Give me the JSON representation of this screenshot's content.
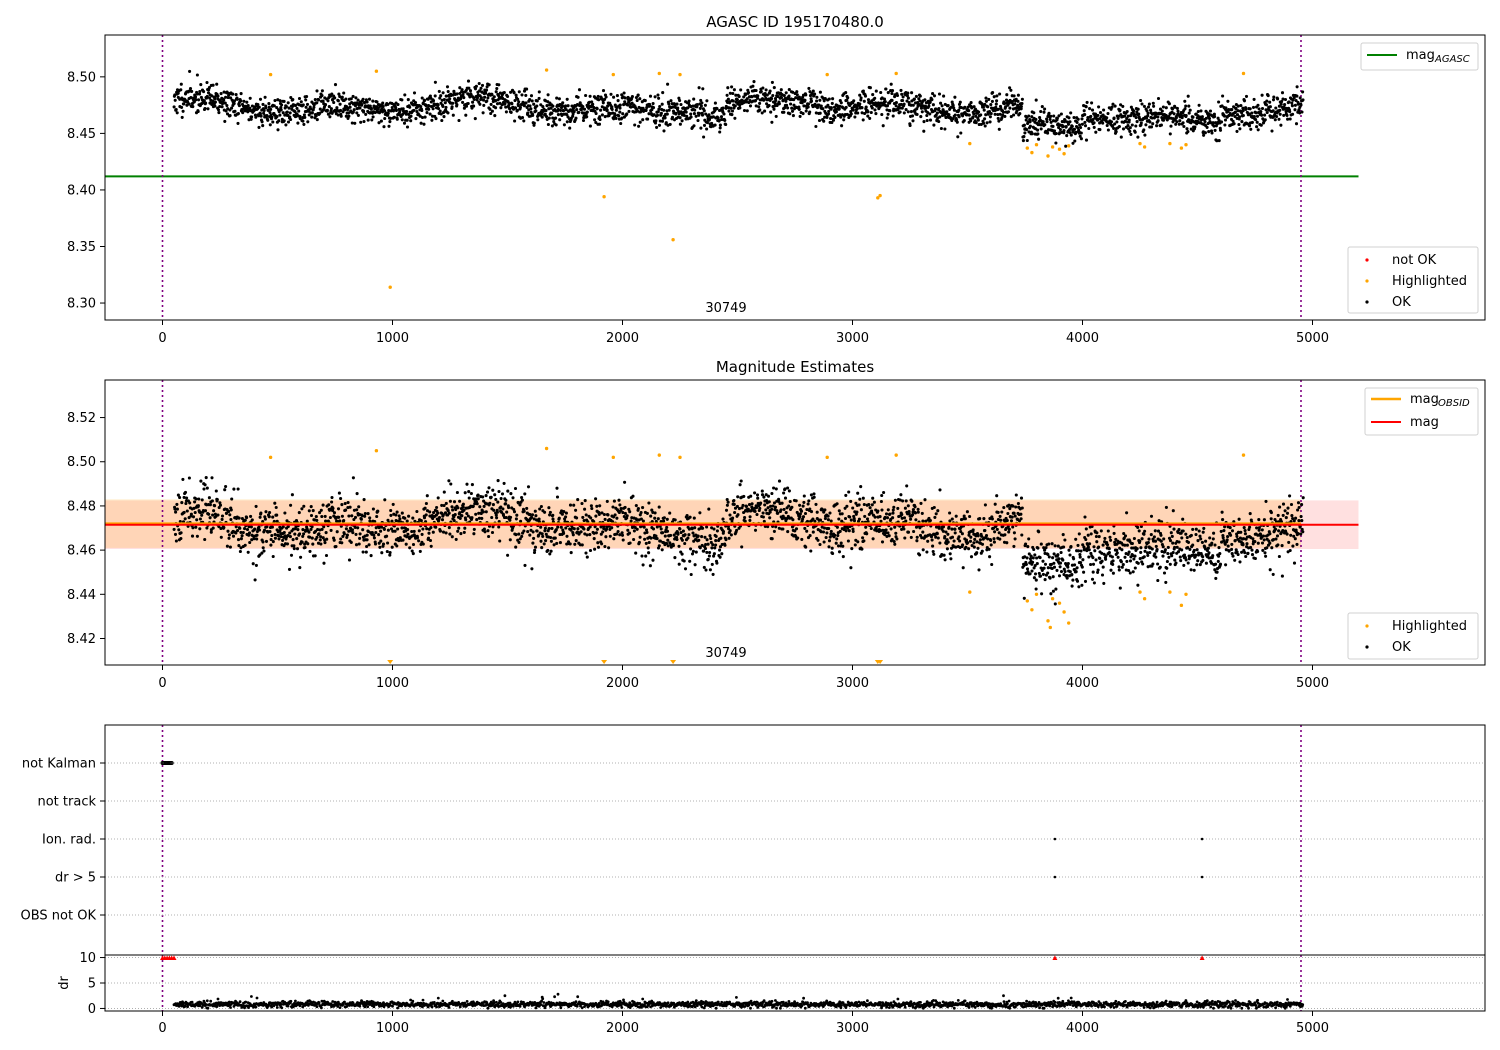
{
  "chart_data": [
    {
      "type": "scatter",
      "title": "AGASC ID 195170480.0",
      "xlabel": "",
      "ylabel": "",
      "xlim": [
        -250,
        5750
      ],
      "ylim": [
        8.285,
        8.537
      ],
      "xticks": [
        0,
        1000,
        2000,
        3000,
        4000,
        5000
      ],
      "yticks": [
        8.3,
        8.35,
        8.4,
        8.45,
        8.5
      ],
      "ytick_labels": [
        "8.30",
        "8.35",
        "8.40",
        "8.45",
        "8.50"
      ],
      "annotation": "30749",
      "annotation_x": 2450,
      "obs_boundaries_x": [
        0,
        4950
      ],
      "reference_line": {
        "name": "mag_AGASC",
        "legend_label": "mag",
        "legend_sub": "AGASC",
        "y": 8.412,
        "x_range": [
          -250,
          5200
        ],
        "color": "#008000"
      },
      "series": [
        {
          "name": "not OK",
          "color": "#ff0000",
          "points": []
        },
        {
          "name": "Highlighted",
          "color": "#ffa500",
          "points": [
            [
              470,
              8.502
            ],
            [
              930,
              8.505
            ],
            [
              1670,
              8.506
            ],
            [
              1960,
              8.502
            ],
            [
              2160,
              8.503
            ],
            [
              2250,
              8.502
            ],
            [
              2890,
              8.502
            ],
            [
              3190,
              8.503
            ],
            [
              4700,
              8.503
            ],
            [
              990,
              8.314
            ],
            [
              1920,
              8.394
            ],
            [
              2220,
              8.356
            ],
            [
              3110,
              8.393
            ],
            [
              3120,
              8.395
            ],
            [
              3510,
              8.441
            ],
            [
              3760,
              8.437
            ],
            [
              3780,
              8.433
            ],
            [
              3800,
              8.44
            ],
            [
              3850,
              8.43
            ],
            [
              3870,
              8.438
            ],
            [
              3900,
              8.436
            ],
            [
              3920,
              8.432
            ],
            [
              3940,
              8.439
            ],
            [
              4250,
              8.441
            ],
            [
              4270,
              8.438
            ],
            [
              4380,
              8.441
            ],
            [
              4430,
              8.437
            ],
            [
              4450,
              8.44
            ]
          ]
        },
        {
          "name": "OK",
          "color": "#000000",
          "x_range": [
            50,
            4960
          ],
          "y_center": 8.474,
          "y_spread": 0.012,
          "n_points": 2900
        }
      ],
      "legend_main": [
        {
          "label": "mag",
          "sub": "AGASC"
        }
      ],
      "legend_points": [
        "not OK",
        "Highlighted",
        "OK"
      ]
    },
    {
      "type": "scatter",
      "title": "Magnitude Estimates",
      "xlabel": "",
      "ylabel": "",
      "xlim": [
        -250,
        5750
      ],
      "ylim": [
        8.408,
        8.537
      ],
      "xticks": [
        0,
        1000,
        2000,
        3000,
        4000,
        5000
      ],
      "yticks": [
        8.42,
        8.44,
        8.46,
        8.48,
        8.5,
        8.52
      ],
      "ytick_labels": [
        "8.42",
        "8.44",
        "8.46",
        "8.48",
        "8.50",
        "8.52"
      ],
      "annotation": "30749",
      "annotation_x": 2450,
      "obs_boundaries_x": [
        0,
        4950
      ],
      "lines": [
        {
          "name": "mag_OBSID",
          "legend_label": "mag",
          "legend_sub": "OBSID",
          "y": 8.472,
          "color": "#ffa500",
          "band": [
            8.461,
            8.483
          ],
          "x_range": [
            -250,
            4950
          ]
        },
        {
          "name": "mag",
          "legend_label": "mag",
          "y": 8.4715,
          "color": "#ff0000",
          "band": [
            8.4605,
            8.4825
          ],
          "x_range": [
            -250,
            5200
          ]
        }
      ],
      "offscale_markers_x": [
        990,
        1920,
        2220,
        3110,
        3120
      ],
      "series": [
        {
          "name": "Highlighted",
          "color": "#ffa500",
          "points": [
            [
              470,
              8.502
            ],
            [
              930,
              8.505
            ],
            [
              1670,
              8.506
            ],
            [
              1960,
              8.502
            ],
            [
              2160,
              8.503
            ],
            [
              2250,
              8.502
            ],
            [
              2890,
              8.502
            ],
            [
              3190,
              8.503
            ],
            [
              4700,
              8.503
            ],
            [
              3510,
              8.441
            ],
            [
              3760,
              8.437
            ],
            [
              3780,
              8.433
            ],
            [
              3800,
              8.44
            ],
            [
              3850,
              8.428
            ],
            [
              3860,
              8.425
            ],
            [
              3870,
              8.438
            ],
            [
              3900,
              8.436
            ],
            [
              3920,
              8.432
            ],
            [
              3940,
              8.427
            ],
            [
              4250,
              8.441
            ],
            [
              4270,
              8.438
            ],
            [
              4380,
              8.441
            ],
            [
              4430,
              8.435
            ],
            [
              4450,
              8.44
            ]
          ]
        },
        {
          "name": "OK",
          "color": "#000000",
          "x_range": [
            50,
            4960
          ],
          "y_center": 8.472,
          "y_spread": 0.011,
          "n_points": 2900
        }
      ],
      "legend_main": [
        {
          "label": "mag",
          "sub": "OBSID"
        },
        {
          "label": "mag",
          "sub": ""
        }
      ],
      "legend_points": [
        "Highlighted",
        "OK"
      ]
    },
    {
      "type": "scatter",
      "title": "",
      "xlim": [
        -250,
        5750
      ],
      "categories": [
        "not Kalman",
        "not track",
        "Ion. rad.",
        "dr > 5",
        "OBS not OK"
      ],
      "flags": {
        "not Kalman": [
          [
            0,
            40
          ]
        ],
        "not track": [],
        "Ion. rad.": [
          [
            3880,
            3880
          ],
          [
            4520,
            4520
          ]
        ],
        "dr > 5": [
          [
            3880,
            3880
          ],
          [
            4520,
            4520
          ]
        ],
        "OBS not OK": []
      },
      "obs_boundaries_x": [
        0,
        4950
      ]
    },
    {
      "type": "scatter",
      "title": "",
      "xlabel": "",
      "ylabel": "dr",
      "xlim": [
        -250,
        5750
      ],
      "ylim": [
        -0.5,
        10.5
      ],
      "xticks": [
        0,
        1000,
        2000,
        3000,
        4000,
        5000
      ],
      "yticks": [
        0,
        5,
        10
      ],
      "ytick_labels": [
        "0",
        "5",
        "10"
      ],
      "obs_boundaries_x": [
        0,
        4950
      ],
      "clipped_markers": {
        "color": "#ff0000",
        "x": [
          0,
          10,
          20,
          30,
          40,
          50,
          3880,
          4520
        ],
        "y": 10
      },
      "series": [
        {
          "name": "dr",
          "color": "#000000",
          "x_range": [
            50,
            4960
          ],
          "y_center": 0.8,
          "y_spread": 0.5,
          "n_points": 2000
        }
      ]
    }
  ]
}
